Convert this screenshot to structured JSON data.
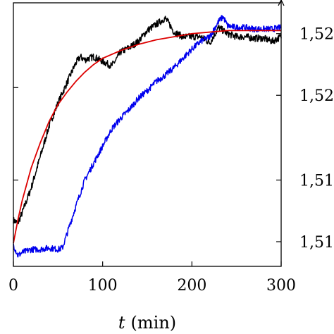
{
  "chart_data": {
    "type": "line",
    "xlim": [
      0,
      300
    ],
    "ylim": [
      1.5094,
      1.5265
    ],
    "x_ticks": [
      0,
      100,
      200,
      300
    ],
    "x_tick_labels": [
      "0",
      "100",
      "200",
      "300"
    ],
    "xlabel_var": "t",
    "xlabel_unit": "(min)",
    "right_axis_ticks": [
      1.5245,
      1.5205,
      1.515,
      1.511
    ],
    "right_tick_labels": [
      "1,52",
      "1,52",
      "1,51",
      "1,51"
    ],
    "left_axis_ticks": [
      1.521,
      1.515
    ],
    "grid": false,
    "legend": "none",
    "series": [
      {
        "color": "#000000",
        "x": [
          0,
          5,
          10,
          20,
          30,
          40,
          50,
          60,
          70,
          75,
          80,
          90,
          100,
          110,
          115,
          120,
          130,
          140,
          150,
          160,
          170,
          175,
          180,
          190,
          200,
          210,
          220,
          230,
          240,
          250,
          260,
          270,
          280,
          290,
          300
        ],
        "y": [
          1.5124,
          1.5122,
          1.5129,
          1.5145,
          1.5165,
          1.5185,
          1.52,
          1.5213,
          1.5226,
          1.523,
          1.5228,
          1.523,
          1.5227,
          1.5224,
          1.5228,
          1.5233,
          1.5236,
          1.524,
          1.5247,
          1.5251,
          1.5255,
          1.5251,
          1.5246,
          1.5243,
          1.5243,
          1.5243,
          1.5239,
          1.5249,
          1.5245,
          1.5243,
          1.5243,
          1.5242,
          1.5242,
          1.524,
          1.5243
        ]
      },
      {
        "color": "#0000ee",
        "x": [
          0,
          5,
          10,
          20,
          30,
          40,
          50,
          55,
          60,
          70,
          80,
          90,
          100,
          110,
          120,
          130,
          140,
          150,
          160,
          170,
          180,
          190,
          200,
          210,
          220,
          230,
          235,
          240,
          250,
          260,
          270,
          280,
          290,
          300
        ],
        "y": [
          1.5108,
          1.5101,
          1.5103,
          1.5105,
          1.5105,
          1.5106,
          1.5105,
          1.5106,
          1.5115,
          1.5133,
          1.515,
          1.5161,
          1.5172,
          1.5183,
          1.519,
          1.5196,
          1.5203,
          1.5208,
          1.5214,
          1.5218,
          1.5223,
          1.5229,
          1.5235,
          1.524,
          1.5243,
          1.5253,
          1.5256,
          1.525,
          1.5249,
          1.5249,
          1.5248,
          1.5248,
          1.5248,
          1.5249
        ]
      },
      {
        "color": "#dd0000",
        "x": [
          0,
          5,
          10,
          20,
          30,
          40,
          50,
          60,
          70,
          80,
          90,
          100,
          120,
          140,
          160,
          180,
          200,
          220,
          240,
          260,
          280,
          300
        ],
        "y": [
          1.5109,
          1.5124,
          1.5137,
          1.5158,
          1.5174,
          1.5188,
          1.5199,
          1.5207,
          1.5214,
          1.522,
          1.5225,
          1.5229,
          1.5234,
          1.5238,
          1.5241,
          1.5243,
          1.5245,
          1.5246,
          1.5247,
          1.5247,
          1.5247,
          1.5247
        ]
      }
    ]
  }
}
